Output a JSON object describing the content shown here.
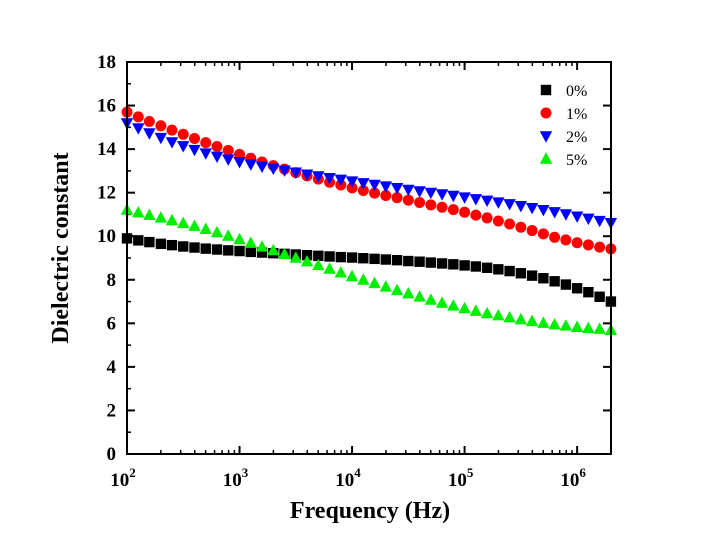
{
  "chart_data": {
    "type": "scatter",
    "xlabel": "Frequency (Hz)",
    "ylabel": "Dielectric constant",
    "x_scale": "log",
    "xlim": [
      100,
      2000000
    ],
    "ylim": [
      0,
      18
    ],
    "x_ticks": [
      {
        "value": 100,
        "base": "10",
        "exp": "2"
      },
      {
        "value": 1000,
        "base": "10",
        "exp": "3"
      },
      {
        "value": 10000,
        "base": "10",
        "exp": "4"
      },
      {
        "value": 100000,
        "base": "10",
        "exp": "5"
      },
      {
        "value": 1000000,
        "base": "10",
        "exp": "6"
      }
    ],
    "y_ticks": [
      "0",
      "2",
      "4",
      "6",
      "8",
      "10",
      "12",
      "14",
      "16",
      "18"
    ],
    "grid": false,
    "legend_position": "top-right",
    "x": [
      100,
      126,
      158,
      200,
      251,
      316,
      398,
      501,
      631,
      794,
      1000,
      1259,
      1585,
      1995,
      2512,
      3162,
      3981,
      5012,
      6310,
      7943,
      10000,
      12589,
      15849,
      19953,
      25119,
      31623,
      39811,
      50119,
      63096,
      79433,
      100000,
      125893,
      158489,
      199526,
      251189,
      316228,
      398107,
      501187,
      630957,
      794328,
      1000000,
      1258925,
      1584893,
      1995262
    ],
    "series": [
      {
        "name": "0%",
        "marker": "square",
        "color": "#000000",
        "values": [
          9.9,
          9.81,
          9.73,
          9.65,
          9.59,
          9.53,
          9.48,
          9.43,
          9.39,
          9.35,
          9.32,
          9.28,
          9.25,
          9.22,
          9.19,
          9.16,
          9.13,
          9.1,
          9.07,
          9.04,
          9.02,
          8.99,
          8.96,
          8.93,
          8.9,
          8.86,
          8.83,
          8.79,
          8.75,
          8.71,
          8.66,
          8.61,
          8.55,
          8.48,
          8.4,
          8.3,
          8.19,
          8.07,
          7.93,
          7.78,
          7.61,
          7.43,
          7.22,
          7.0
        ]
      },
      {
        "name": "1%",
        "marker": "circle",
        "color": "#ff0000",
        "values": [
          15.7,
          15.48,
          15.27,
          15.07,
          14.87,
          14.68,
          14.49,
          14.3,
          14.12,
          13.94,
          13.76,
          13.58,
          13.41,
          13.24,
          13.08,
          12.92,
          12.77,
          12.62,
          12.48,
          12.35,
          12.22,
          12.1,
          11.98,
          11.87,
          11.77,
          11.66,
          11.55,
          11.44,
          11.33,
          11.22,
          11.1,
          10.97,
          10.84,
          10.7,
          10.56,
          10.41,
          10.26,
          10.11,
          9.95,
          9.83,
          9.7,
          9.6,
          9.5,
          9.42
        ]
      },
      {
        "name": "2%",
        "marker": "triangle-down",
        "color": "#0000ff",
        "values": [
          15.2,
          14.97,
          14.74,
          14.53,
          14.33,
          14.15,
          13.98,
          13.82,
          13.67,
          13.54,
          13.42,
          13.31,
          13.21,
          13.12,
          13.03,
          12.94,
          12.85,
          12.77,
          12.69,
          12.61,
          12.53,
          12.45,
          12.38,
          12.3,
          12.23,
          12.15,
          12.08,
          12.01,
          11.94,
          11.87,
          11.8,
          11.72,
          11.65,
          11.57,
          11.49,
          11.4,
          11.31,
          11.22,
          11.12,
          11.02,
          10.92,
          10.82,
          10.72,
          10.62
        ]
      },
      {
        "name": "5%",
        "marker": "triangle-up",
        "color": "#00ee00",
        "values": [
          11.2,
          11.08,
          10.96,
          10.84,
          10.72,
          10.59,
          10.46,
          10.32,
          10.17,
          10.01,
          9.85,
          9.68,
          9.51,
          9.34,
          9.17,
          9.0,
          8.83,
          8.66,
          8.49,
          8.32,
          8.15,
          7.99,
          7.83,
          7.67,
          7.51,
          7.36,
          7.21,
          7.07,
          6.93,
          6.8,
          6.68,
          6.56,
          6.45,
          6.35,
          6.26,
          6.17,
          6.09,
          6.01,
          5.94,
          5.88,
          5.82,
          5.77,
          5.73,
          5.68
        ]
      }
    ]
  }
}
